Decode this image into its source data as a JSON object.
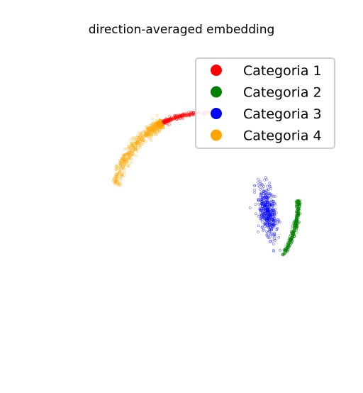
{
  "chart_data": {
    "type": "scatter",
    "title": "direction-averaged embedding",
    "xlabel": "",
    "ylabel": "",
    "axes_visible": false,
    "grid": false,
    "xlim": [
      -1.1,
      1.1
    ],
    "ylim": [
      -1.1,
      1.1
    ],
    "legend_position": "top-right",
    "series": [
      {
        "name": "Categoria 1",
        "color": "#ff0000",
        "marker": "hollow-circle",
        "arc_center": [
          0.17,
          -0.04
        ],
        "arc_radius": 0.68,
        "arc_angle_range_deg": [
          86,
          121
        ],
        "angle_concentration": 0.55,
        "spread": 0.008,
        "count": 260
      },
      {
        "name": "Categoria 2",
        "color": "#008000",
        "marker": "hollow-circle",
        "arc_center": [
          0.17,
          -0.04
        ],
        "arc_radius": 0.7,
        "arc_angle_range_deg": [
          -34,
          2
        ],
        "angle_concentration": 0.8,
        "spread": 0.008,
        "count": 340
      },
      {
        "name": "Categoria 3",
        "color": "#0000ff",
        "marker": "hollow-circle",
        "center": [
          0.64,
          -0.1
        ],
        "axis_angle_deg": -80,
        "length": 0.22,
        "width": 0.07,
        "count": 420
      },
      {
        "name": "Categoria 4",
        "color": "#ffa500",
        "marker": "hollow-circle",
        "arc_center": [
          0.17,
          -0.04
        ],
        "arc_radius": 0.68,
        "arc_angle_range_deg": [
          118,
          168
        ],
        "angle_concentration": 1.6,
        "spread": 0.02,
        "count": 520
      }
    ]
  }
}
